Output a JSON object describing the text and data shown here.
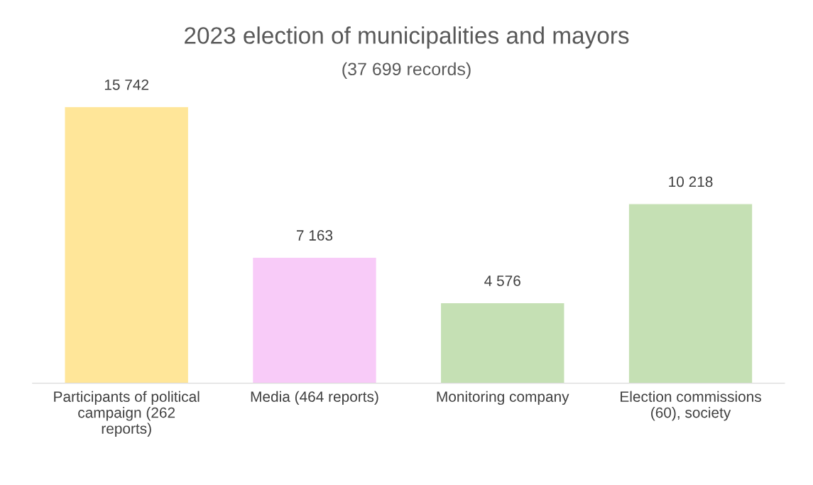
{
  "chart_data": {
    "type": "bar",
    "title": "2023 election of municipalities and mayors",
    "subtitle": "(37 699 records)",
    "categories": [
      "Participants of political\ncampaign (262\nreports)",
      "Media (464 reports)",
      "Monitoring company",
      "Election commissions\n(60), society"
    ],
    "values": [
      15742,
      7163,
      4576,
      10218
    ],
    "value_labels": [
      "15 742",
      "7 163",
      "4 576",
      "10 218"
    ],
    "colors": [
      "#ffe699",
      "#f8cbf8",
      "#c5e0b4",
      "#c5e0b4"
    ],
    "tick_labels": "x",
    "grid": false,
    "legend": false
  }
}
